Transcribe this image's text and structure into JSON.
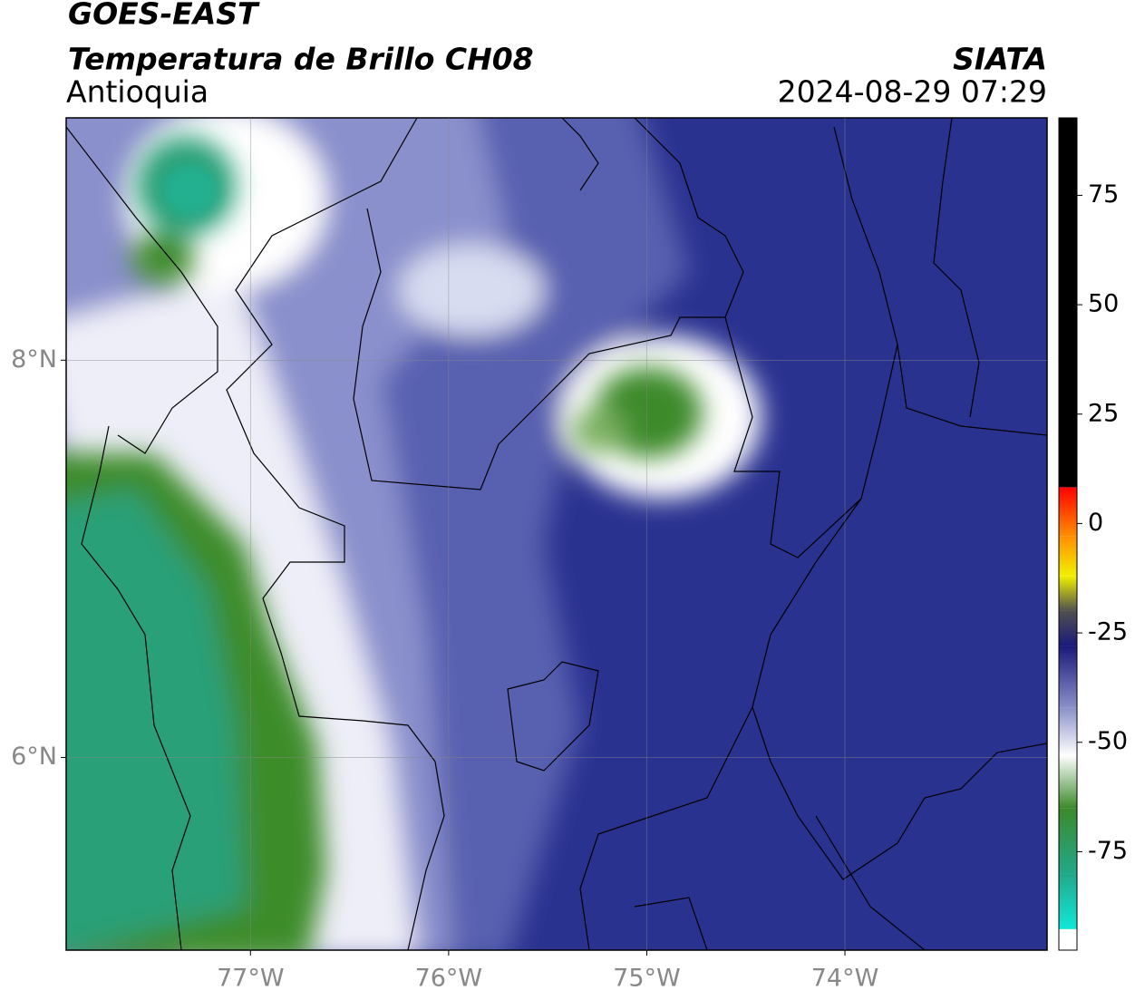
{
  "chart_data": {
    "type": "map",
    "title": "GOES-EAST",
    "subtitle": "Temperatura de Brillo CH08",
    "region": "Antioquia",
    "source": "SIATA",
    "timestamp": "2024-08-29 07:29",
    "xlim": [
      -77.93,
      -72.98
    ],
    "ylim": [
      5.03,
      9.22
    ],
    "xticks": [
      {
        "value": -77,
        "label": "77°W"
      },
      {
        "value": -76,
        "label": "76°W"
      },
      {
        "value": -75,
        "label": "75°W"
      },
      {
        "value": -74,
        "label": "74°W"
      }
    ],
    "yticks": [
      {
        "value": 6,
        "label": "6°N"
      },
      {
        "value": 8,
        "label": "8°N"
      }
    ],
    "grid": true,
    "colorbar": {
      "lim": [
        -97.5,
        92.7
      ],
      "ticks": [
        -75,
        -50,
        -25,
        0,
        25,
        50,
        75
      ]
    },
    "colormap": [
      {
        "value": -97.5,
        "color": "#ffffff"
      },
      {
        "value": -92.7,
        "color": "#ffffff"
      },
      {
        "value": -92.7,
        "color": "#10e8d8"
      },
      {
        "value": -80,
        "color": "#22a88a"
      },
      {
        "value": -65,
        "color": "#3c8a2a"
      },
      {
        "value": -53,
        "color": "#ffffff"
      },
      {
        "value": -42,
        "color": "#8890c8"
      },
      {
        "value": -28,
        "color": "#1a1a7a"
      },
      {
        "value": -20,
        "color": "#505050"
      },
      {
        "value": -12,
        "color": "#f0f000"
      },
      {
        "value": -3,
        "color": "#ff9000"
      },
      {
        "value": 8.3,
        "color": "#ff0000"
      },
      {
        "value": 8.3,
        "color": "#000000"
      },
      {
        "value": 92.7,
        "color": "#000000"
      }
    ]
  }
}
